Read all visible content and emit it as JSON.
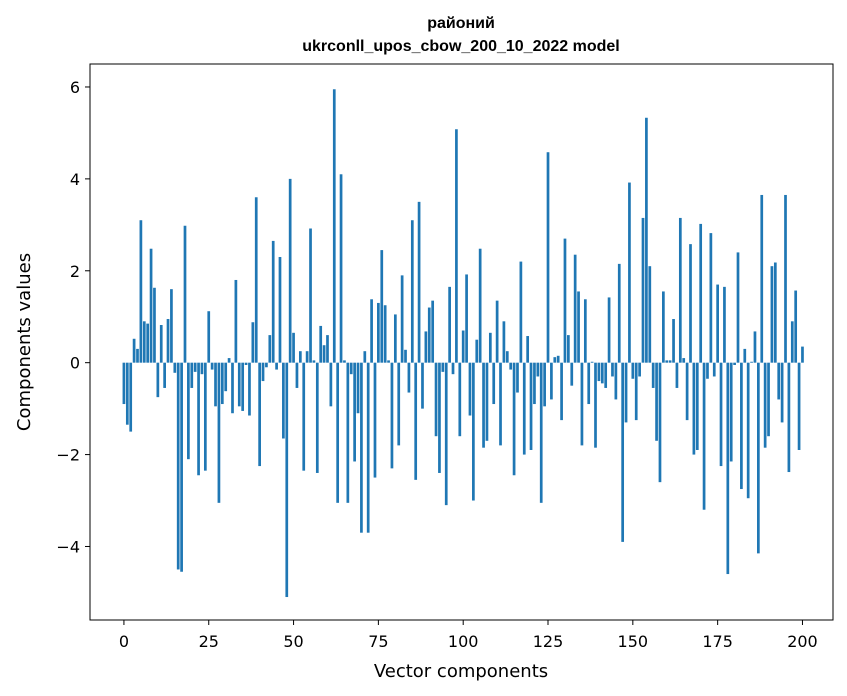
{
  "chart_data": {
    "type": "bar",
    "title": "районий",
    "subtitle": "ukrconll_upos_cbow_200_10_2022 model",
    "xlabel": "Vector components",
    "ylabel": "Components values",
    "xlim": [
      -10,
      209
    ],
    "ylim": [
      -5.6,
      6.5
    ],
    "xticks": [
      0,
      25,
      50,
      75,
      100,
      125,
      150,
      175,
      200
    ],
    "yticks": [
      -4,
      -2,
      0,
      2,
      4,
      6
    ],
    "ytick_labels": [
      "−4",
      "−2",
      "0",
      "2",
      "4",
      "6"
    ],
    "grid": false,
    "color": "#1f77b4",
    "values": [
      -0.9,
      -1.35,
      -1.5,
      0.52,
      0.3,
      3.1,
      0.9,
      0.85,
      2.48,
      1.63,
      -0.75,
      0.82,
      -0.55,
      0.95,
      1.6,
      -0.22,
      -4.5,
      -4.55,
      2.98,
      -2.1,
      -0.55,
      -0.2,
      -2.45,
      -0.25,
      -2.35,
      1.12,
      -0.15,
      -0.95,
      -3.05,
      -0.9,
      -0.62,
      0.1,
      -1.1,
      1.8,
      -0.95,
      -1.05,
      -0.05,
      -1.15,
      0.88,
      3.6,
      -2.25,
      -0.4,
      -0.1,
      0.6,
      2.65,
      -0.15,
      2.3,
      -1.65,
      -5.1,
      4.0,
      0.65,
      -0.55,
      0.25,
      -2.35,
      0.25,
      2.92,
      0.05,
      -2.4,
      0.8,
      0.38,
      0.6,
      -0.95,
      5.95,
      -3.05,
      4.1,
      0.05,
      -3.05,
      -0.25,
      -2.15,
      -1.1,
      -3.7,
      0.25,
      -3.7,
      1.38,
      -2.5,
      1.3,
      2.45,
      1.25,
      0.05,
      -2.3,
      1.05,
      -1.8,
      1.9,
      0.28,
      -0.65,
      3.1,
      -2.55,
      3.5,
      -1.0,
      0.68,
      1.2,
      1.35,
      -1.6,
      -2.4,
      -0.2,
      -3.1,
      1.65,
      -0.25,
      5.08,
      -1.6,
      0.7,
      1.92,
      -1.15,
      -3.0,
      0.5,
      2.48,
      -1.85,
      -1.7,
      0.65,
      -0.9,
      1.35,
      -1.8,
      0.9,
      0.25,
      -0.15,
      -2.45,
      -0.65,
      2.2,
      -2.0,
      0.58,
      -1.9,
      -0.9,
      -0.3,
      -3.05,
      -0.95,
      4.58,
      -0.8,
      0.12,
      0.15,
      -1.25,
      2.7,
      0.6,
      -0.5,
      2.35,
      1.55,
      -1.8,
      1.38,
      -0.9,
      0.02,
      -1.85,
      -0.4,
      -0.45,
      -0.55,
      1.42,
      -0.3,
      -0.8,
      2.15,
      -3.9,
      -1.3,
      3.92,
      -0.35,
      -1.25,
      -0.3,
      3.15,
      5.33,
      2.1,
      -0.55,
      -1.7,
      -2.6,
      1.55,
      0.05,
      0.05,
      0.95,
      -0.55,
      3.15,
      0.1,
      -1.25,
      2.58,
      -2.0,
      -1.9,
      3.02,
      -3.2,
      -0.35,
      2.82,
      -0.3,
      1.7,
      -2.25,
      1.65,
      -4.6,
      -2.15,
      -0.05,
      2.4,
      -2.75,
      0.3,
      -2.95,
      0.02,
      0.68,
      -4.15,
      3.65,
      -1.85,
      -1.6,
      2.1,
      2.18,
      -0.8,
      -1.3,
      3.65,
      -2.38,
      0.9,
      1.57,
      -1.9,
      0.35
    ]
  }
}
